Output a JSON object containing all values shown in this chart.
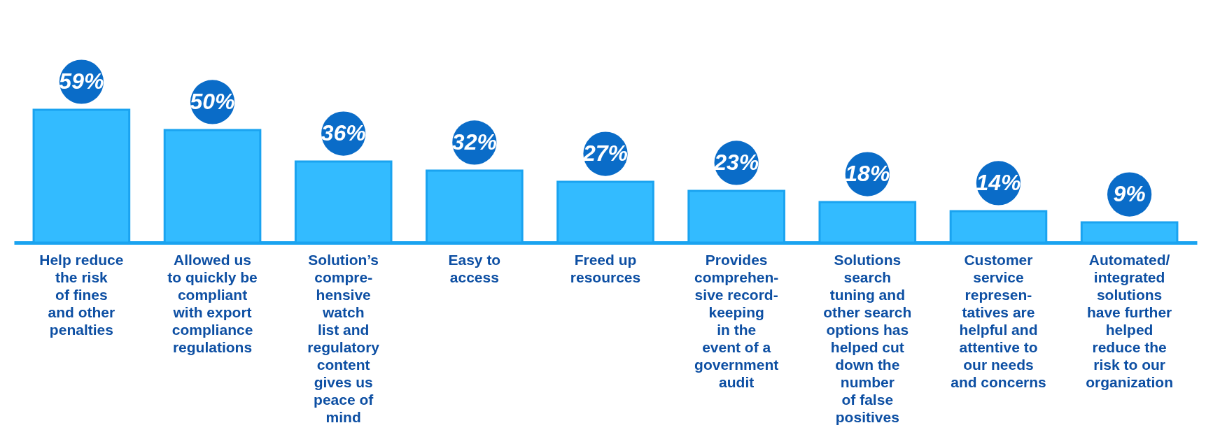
{
  "chart_data": {
    "type": "bar",
    "categories": [
      "Help reduce\nthe risk\nof fines\nand other\npenalties",
      "Allowed us\nto quickly be\ncompliant\nwith export\ncompliance\nregulations",
      "Solution’s\ncompre-\nhensive\nwatch\nlist and\nregulatory\ncontent\ngives us\npeace of\nmind",
      "Easy to\naccess",
      "Freed up\nresources",
      "Provides\ncomprehen-\nsive record-\nkeeping\nin the\nevent of a\ngovernment\naudit",
      "Solutions\nsearch\ntuning and\nother search\noptions has\nhelped cut\ndown the\nnumber\nof false\npositives",
      "Customer\nservice\nrepresen-\ntatives are\nhelpful and\nattentive to\nour needs\nand concerns",
      "Automated/\nintegrated\nsolutions\nhave further\nhelped\nreduce the\nrisk to our\norganization"
    ],
    "values": [
      59,
      50,
      36,
      32,
      27,
      23,
      18,
      14,
      9
    ],
    "value_labels": [
      "59%",
      "50%",
      "36%",
      "32%",
      "27%",
      "23%",
      "18%",
      "14%",
      "9%"
    ],
    "color": "#33bbff",
    "grid": false
  }
}
